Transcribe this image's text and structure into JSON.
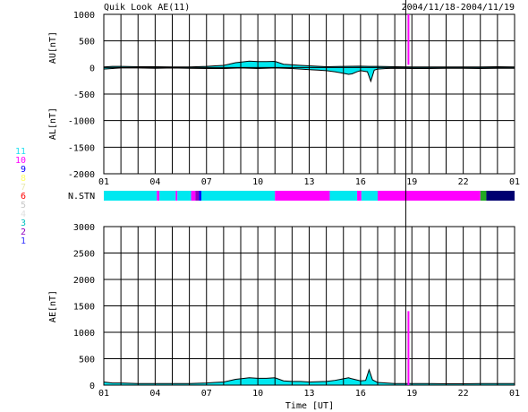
{
  "header": {
    "title": "Quik Look AE(11)",
    "date_range": "2004/11/18-2004/11/19"
  },
  "station_legend": {
    "items": [
      {
        "label": "11",
        "color": "#22e0f0"
      },
      {
        "label": "10",
        "color": "#ff00ff"
      },
      {
        "label": "9",
        "color": "#0000ff"
      },
      {
        "label": "8",
        "color": "#ffff66"
      },
      {
        "label": "7",
        "color": "#e8e8b0"
      },
      {
        "label": "6",
        "color": "#ff0000"
      },
      {
        "label": "5",
        "color": "#c8c8c8"
      },
      {
        "label": "4",
        "color": "#e0e0e0"
      },
      {
        "label": "3",
        "color": "#00c0c0"
      },
      {
        "label": "2",
        "color": "#9000c0"
      },
      {
        "label": "1",
        "color": "#3030ff"
      }
    ]
  },
  "colors": {
    "cyan": "#00e8f0",
    "magenta": "#ff00ff",
    "purple": "#9000c0",
    "blue": "#0000ff",
    "navy": "#000070",
    "green": "#22aa22"
  },
  "chart_data": [
    {
      "type": "area",
      "ylabel_top": "AU[nT]",
      "ylabel_bottom": "AL[nT]",
      "ylim": [
        -2000,
        1000
      ],
      "yticks": [
        "1000",
        "500",
        "0",
        "-500",
        "-1000",
        "-1500",
        "-2000"
      ],
      "xlim": [
        0,
        24
      ],
      "xticks": [
        "01",
        "04",
        "07",
        "10",
        "13",
        "16",
        "19",
        "22",
        "01"
      ],
      "grid": true,
      "au_series": {
        "x": [
          0,
          0.5,
          1,
          2,
          3,
          4,
          5,
          6,
          6.5,
          7,
          7.3,
          7.7,
          8,
          8.5,
          9,
          9.5,
          10,
          10.5,
          11,
          11.5,
          12,
          13,
          14,
          15,
          15.5,
          16,
          17,
          18,
          19,
          20,
          21,
          22,
          23,
          24
        ],
        "y": [
          10,
          20,
          20,
          15,
          15,
          10,
          10,
          20,
          30,
          40,
          60,
          90,
          100,
          120,
          110,
          110,
          115,
          60,
          50,
          40,
          30,
          15,
          20,
          25,
          20,
          20,
          15,
          10,
          10,
          10,
          10,
          10,
          15,
          10
        ]
      },
      "al_series": {
        "x": [
          0,
          0.5,
          1,
          2,
          3,
          4,
          5,
          6,
          7,
          8,
          9,
          10,
          11,
          12,
          12.5,
          13,
          13.5,
          14,
          14.3,
          14.5,
          14.8,
          15,
          15.4,
          15.6,
          15.8,
          16,
          16.5,
          17,
          18,
          19,
          20,
          21,
          22,
          23,
          24
        ],
        "y": [
          -30,
          -20,
          -10,
          -10,
          -15,
          -10,
          -15,
          -20,
          -20,
          -10,
          -20,
          -10,
          -20,
          -40,
          -50,
          -60,
          -80,
          -110,
          -130,
          -120,
          -80,
          -60,
          -80,
          -260,
          -50,
          -30,
          -20,
          -15,
          -20,
          -20,
          -15,
          -15,
          -20,
          -15,
          -15
        ]
      },
      "spike": {
        "x": 17.8,
        "y_top": 1000,
        "y_bottom": 50
      }
    },
    {
      "type": "bar",
      "label": "N.STN",
      "segments": [
        {
          "start": 0,
          "end": 3.1,
          "color": "cyan"
        },
        {
          "start": 3.1,
          "end": 3.25,
          "color": "magenta"
        },
        {
          "start": 3.25,
          "end": 4.2,
          "color": "cyan"
        },
        {
          "start": 4.2,
          "end": 4.3,
          "color": "magenta"
        },
        {
          "start": 4.3,
          "end": 5.1,
          "color": "cyan"
        },
        {
          "start": 5.1,
          "end": 5.35,
          "color": "magenta"
        },
        {
          "start": 5.35,
          "end": 5.55,
          "color": "purple"
        },
        {
          "start": 5.55,
          "end": 5.7,
          "color": "blue"
        },
        {
          "start": 5.7,
          "end": 10,
          "color": "cyan"
        },
        {
          "start": 10,
          "end": 13.2,
          "color": "magenta"
        },
        {
          "start": 13.2,
          "end": 14.8,
          "color": "cyan"
        },
        {
          "start": 14.8,
          "end": 15.05,
          "color": "magenta"
        },
        {
          "start": 15.05,
          "end": 16,
          "color": "cyan"
        },
        {
          "start": 16,
          "end": 22,
          "color": "magenta"
        },
        {
          "start": 22,
          "end": 22.35,
          "color": "green"
        },
        {
          "start": 22.35,
          "end": 24,
          "color": "navy"
        }
      ]
    },
    {
      "type": "area",
      "ylabel": "AE[nT]",
      "ylim": [
        0,
        3000
      ],
      "yticks": [
        "3000",
        "2500",
        "2000",
        "1500",
        "1000",
        "500",
        "0"
      ],
      "xlim": [
        0,
        24
      ],
      "xticks": [
        "01",
        "04",
        "07",
        "10",
        "13",
        "16",
        "19",
        "22",
        "01"
      ],
      "xlabel": "Time [UT]",
      "grid": true,
      "series": {
        "x": [
          0,
          0.5,
          1,
          2,
          3,
          4,
          5,
          6,
          6.5,
          7,
          7.3,
          7.7,
          8,
          8.5,
          9,
          9.5,
          10,
          10.5,
          11,
          11.5,
          12,
          13,
          13.5,
          14,
          14.3,
          14.5,
          15,
          15.3,
          15.5,
          15.7,
          16,
          17,
          18,
          19,
          20,
          21,
          22,
          23,
          24
        ],
        "y": [
          60,
          40,
          40,
          30,
          30,
          30,
          30,
          40,
          50,
          60,
          80,
          110,
          120,
          140,
          130,
          130,
          140,
          80,
          70,
          70,
          60,
          70,
          90,
          120,
          140,
          120,
          80,
          90,
          290,
          100,
          50,
          30,
          30,
          30,
          25,
          25,
          30,
          30,
          30
        ]
      },
      "spike": {
        "x": 17.8,
        "y": 1400
      }
    }
  ],
  "spike_color": "#ff00ff"
}
